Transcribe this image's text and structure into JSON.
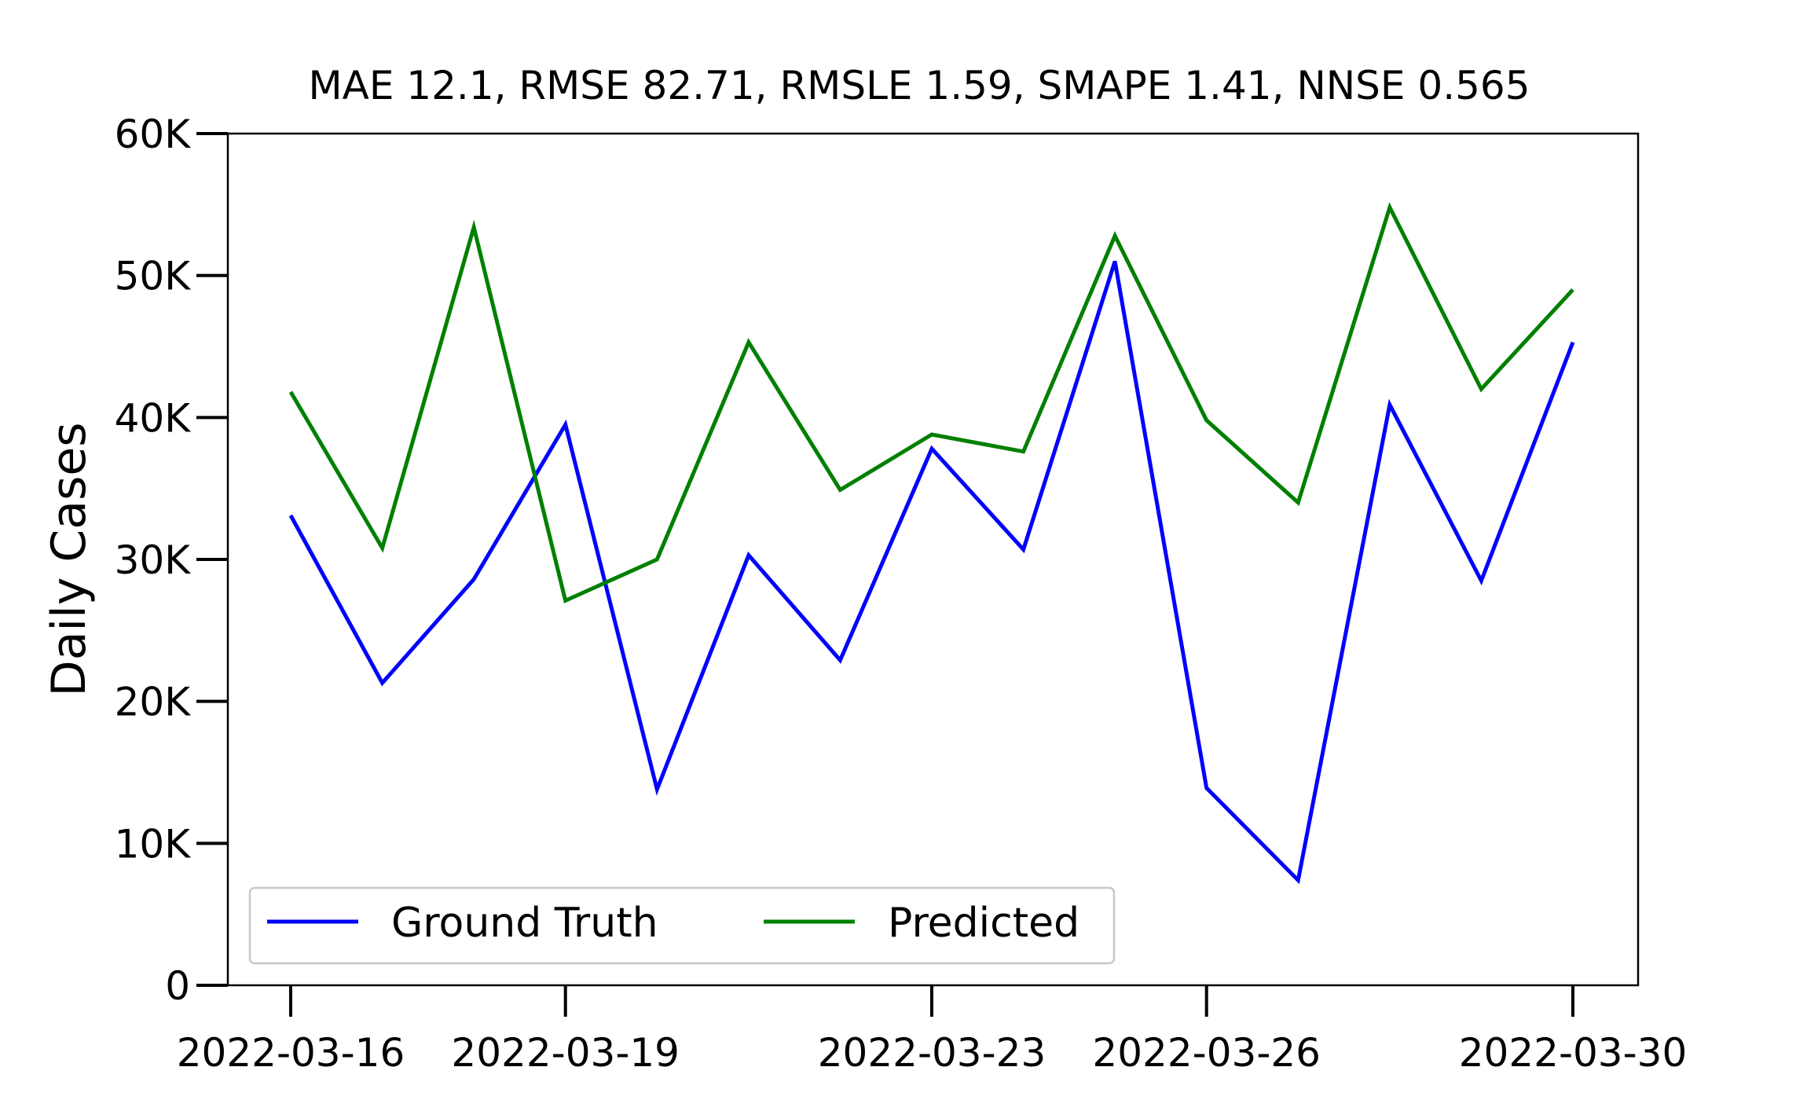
{
  "chart_data": {
    "type": "line",
    "title": "MAE 12.1, RMSE 82.71, RMSLE 1.59, SMAPE 1.41, NNSE 0.565",
    "xlabel": "",
    "ylabel": "Daily Cases",
    "x": [
      "2022-03-16",
      "2022-03-17",
      "2022-03-18",
      "2022-03-19",
      "2022-03-20",
      "2022-03-21",
      "2022-03-22",
      "2022-03-23",
      "2022-03-24",
      "2022-03-25",
      "2022-03-26",
      "2022-03-27",
      "2022-03-28",
      "2022-03-29",
      "2022-03-30"
    ],
    "x_ticks": [
      "2022-03-16",
      "2022-03-19",
      "2022-03-23",
      "2022-03-26",
      "2022-03-30"
    ],
    "y_ticks": [
      0,
      10000,
      20000,
      30000,
      40000,
      50000,
      60000
    ],
    "y_tick_labels": [
      "0",
      "10K",
      "20K",
      "30K",
      "40K",
      "50K",
      "60K"
    ],
    "ylim": [
      0,
      60000
    ],
    "grid": false,
    "legend_position": "bottom-left",
    "series": [
      {
        "name": "Ground Truth",
        "color": "#0000ff",
        "values": [
          33100,
          21300,
          28600,
          39500,
          13800,
          30300,
          22900,
          37800,
          30700,
          51000,
          13900,
          7400,
          40900,
          28500,
          45300
        ]
      },
      {
        "name": "Predicted",
        "color": "#008000",
        "values": [
          41800,
          30800,
          53400,
          27100,
          30000,
          45300,
          34900,
          38800,
          37600,
          52800,
          39800,
          34000,
          54800,
          42000,
          49000
        ]
      }
    ]
  }
}
